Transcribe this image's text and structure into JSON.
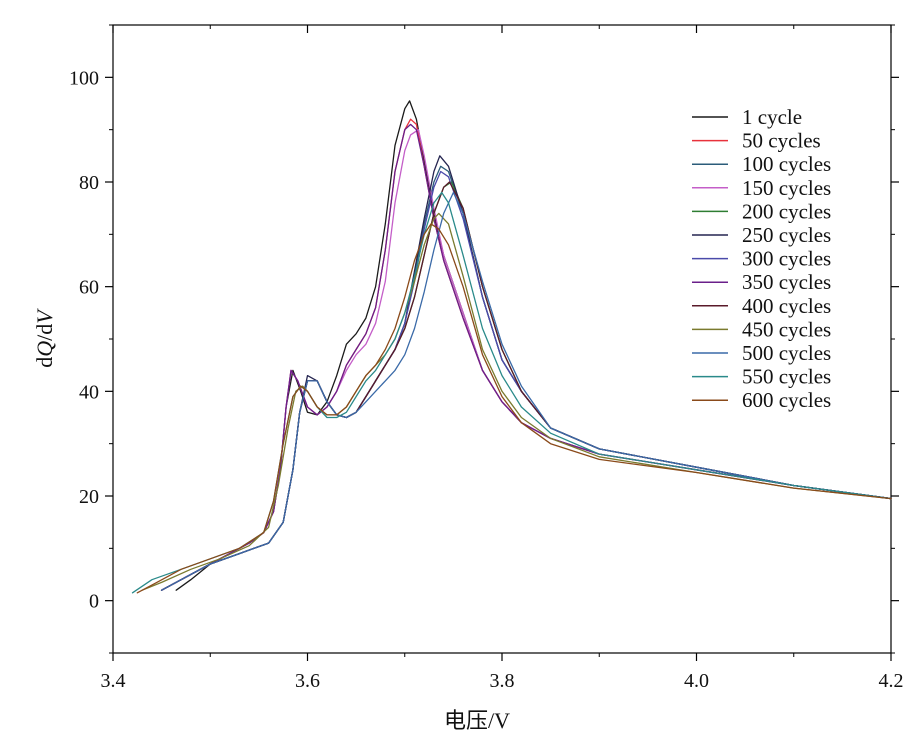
{
  "chart_data": {
    "type": "line",
    "title": "",
    "xlabel": "电压/V",
    "ylabel_parts": [
      "d",
      "Q",
      "/d",
      "V"
    ],
    "xlim": [
      3.4,
      4.2
    ],
    "ylim": [
      -10,
      110
    ],
    "x_ticks": [
      3.4,
      3.6,
      3.8,
      4.0,
      4.2
    ],
    "x_tick_labels": [
      "3.4",
      "3.6",
      "3.8",
      "4.0",
      "4.2"
    ],
    "y_ticks": [
      0,
      20,
      40,
      60,
      80,
      100
    ],
    "y_tick_labels": [
      "0",
      "20",
      "40",
      "60",
      "80",
      "100"
    ],
    "grid": false,
    "legend_position": "top-right",
    "series": [
      {
        "name": "1 cycle",
        "color": "#1a1a1a",
        "x": [
          3.465,
          3.48,
          3.5,
          3.52,
          3.54,
          3.555,
          3.565,
          3.572,
          3.578,
          3.585,
          3.593,
          3.6,
          3.61,
          3.62,
          3.63,
          3.64,
          3.65,
          3.66,
          3.67,
          3.68,
          3.69,
          3.7,
          3.705,
          3.712,
          3.72,
          3.73,
          3.74,
          3.76,
          3.78,
          3.8,
          3.82,
          3.85,
          3.9,
          4.0,
          4.1,
          4.2
        ],
        "y": [
          2,
          4,
          7,
          9,
          11,
          13,
          17,
          25,
          37,
          44,
          40,
          36,
          35.5,
          38,
          43,
          49,
          51,
          54,
          60,
          72,
          87,
          94,
          95.5,
          92,
          84,
          74,
          66,
          55,
          44,
          38,
          34,
          31,
          28,
          25,
          22,
          19.5
        ]
      },
      {
        "name": "50 cycles",
        "color": "#e8323c",
        "x": [
          3.45,
          3.47,
          3.5,
          3.52,
          3.54,
          3.555,
          3.565,
          3.572,
          3.578,
          3.583,
          3.59,
          3.6,
          3.61,
          3.62,
          3.63,
          3.64,
          3.65,
          3.66,
          3.67,
          3.68,
          3.69,
          3.7,
          3.706,
          3.712,
          3.72,
          3.73,
          3.74,
          3.76,
          3.78,
          3.8,
          3.82,
          3.85,
          3.9,
          4.0,
          4.1,
          4.2
        ],
        "y": [
          2,
          4,
          7,
          9,
          11,
          13,
          17,
          25,
          37,
          44,
          42,
          37,
          35.5,
          37,
          40,
          45,
          48,
          51,
          56,
          67,
          82,
          90,
          92,
          91,
          83,
          73,
          65,
          54,
          44,
          38,
          34,
          31,
          28,
          25,
          22,
          19.5
        ]
      },
      {
        "name": "100 cycles",
        "color": "#2b5c7a",
        "x": [
          3.45,
          3.47,
          3.5,
          3.53,
          3.56,
          3.575,
          3.585,
          3.592,
          3.6,
          3.61,
          3.62,
          3.63,
          3.64,
          3.65,
          3.66,
          3.67,
          3.68,
          3.69,
          3.7,
          3.71,
          3.72,
          3.73,
          3.737,
          3.745,
          3.76,
          3.78,
          3.8,
          3.82,
          3.85,
          3.9,
          4.0,
          4.1,
          4.2
        ],
        "y": [
          2,
          4,
          7,
          9,
          11,
          15,
          25,
          36,
          42,
          42,
          38,
          35.5,
          35,
          36,
          39,
          42,
          45,
          48,
          53,
          62,
          72,
          80,
          83,
          82,
          74,
          58,
          46,
          40,
          33,
          29,
          25.5,
          22,
          19.5
        ]
      },
      {
        "name": "150 cycles",
        "color": "#c45ec8",
        "x": [
          3.45,
          3.47,
          3.5,
          3.52,
          3.54,
          3.555,
          3.565,
          3.572,
          3.578,
          3.583,
          3.59,
          3.6,
          3.61,
          3.62,
          3.63,
          3.64,
          3.65,
          3.66,
          3.67,
          3.68,
          3.69,
          3.7,
          3.706,
          3.714,
          3.72,
          3.73,
          3.74,
          3.76,
          3.78,
          3.8,
          3.82,
          3.85,
          3.9,
          4.0,
          4.1,
          4.2
        ],
        "y": [
          2,
          4,
          7,
          9,
          11,
          13,
          17,
          25,
          37,
          44,
          42,
          37,
          35.5,
          37,
          40,
          44,
          47,
          49,
          53,
          61,
          76,
          86,
          89,
          90,
          85,
          75,
          66,
          55,
          44,
          38,
          34,
          31,
          28,
          25,
          22,
          19.5
        ]
      },
      {
        "name": "200 cycles",
        "color": "#2e7d32",
        "x": [
          3.45,
          3.47,
          3.5,
          3.53,
          3.56,
          3.575,
          3.585,
          3.592,
          3.6,
          3.61,
          3.62,
          3.63,
          3.64,
          3.65,
          3.66,
          3.67,
          3.68,
          3.69,
          3.7,
          3.71,
          3.72,
          3.73,
          3.74,
          3.748,
          3.76,
          3.78,
          3.8,
          3.82,
          3.85,
          3.9,
          4.0,
          4.1,
          4.2
        ],
        "y": [
          2,
          4,
          7,
          9,
          11,
          15,
          25,
          36,
          42,
          42,
          38,
          35.5,
          35,
          36,
          39,
          42,
          45,
          48,
          52,
          58,
          66,
          74,
          79,
          80,
          75,
          60,
          48,
          40,
          33,
          29,
          25.5,
          22,
          19.5
        ]
      },
      {
        "name": "250 cycles",
        "color": "#252550",
        "x": [
          3.45,
          3.47,
          3.5,
          3.53,
          3.56,
          3.575,
          3.585,
          3.592,
          3.6,
          3.61,
          3.62,
          3.63,
          3.64,
          3.65,
          3.66,
          3.67,
          3.68,
          3.69,
          3.7,
          3.71,
          3.72,
          3.73,
          3.736,
          3.745,
          3.76,
          3.78,
          3.8,
          3.82,
          3.85,
          3.9,
          4.0,
          4.1,
          4.2
        ],
        "y": [
          2,
          4,
          7,
          9,
          11,
          15,
          25,
          36,
          43,
          42,
          38,
          35.5,
          35,
          36,
          39,
          42,
          45,
          48,
          53,
          63,
          73,
          82,
          85,
          83,
          74,
          58,
          46,
          40,
          33,
          29,
          25.5,
          22,
          19.5
        ]
      },
      {
        "name": "300 cycles",
        "color": "#4a4aaa",
        "x": [
          3.45,
          3.47,
          3.5,
          3.53,
          3.56,
          3.575,
          3.585,
          3.592,
          3.6,
          3.61,
          3.62,
          3.63,
          3.64,
          3.65,
          3.66,
          3.67,
          3.68,
          3.69,
          3.7,
          3.71,
          3.72,
          3.73,
          3.737,
          3.745,
          3.76,
          3.78,
          3.8,
          3.82,
          3.85,
          3.9,
          4.0,
          4.1,
          4.2
        ],
        "y": [
          2,
          4,
          7,
          9,
          11,
          15,
          25,
          36,
          42,
          42,
          38,
          35.5,
          35,
          36,
          39,
          42,
          45,
          48,
          53,
          61,
          71,
          79,
          82,
          81,
          73,
          58,
          46,
          40,
          33,
          29,
          25.5,
          22,
          19.5
        ]
      },
      {
        "name": "350 cycles",
        "color": "#6a1f8a",
        "x": [
          3.45,
          3.47,
          3.5,
          3.52,
          3.54,
          3.555,
          3.565,
          3.572,
          3.578,
          3.583,
          3.59,
          3.6,
          3.61,
          3.62,
          3.63,
          3.64,
          3.65,
          3.66,
          3.67,
          3.68,
          3.69,
          3.7,
          3.706,
          3.712,
          3.72,
          3.73,
          3.74,
          3.76,
          3.78,
          3.8,
          3.82,
          3.85,
          3.9,
          4.0,
          4.1,
          4.2
        ],
        "y": [
          2,
          4,
          7,
          9,
          11,
          13,
          17,
          25,
          37,
          44,
          42,
          37,
          35.5,
          37,
          40,
          45,
          48,
          51,
          56,
          67,
          82,
          90,
          91,
          90,
          83,
          73,
          65,
          54,
          44,
          38,
          34,
          31,
          28,
          25,
          22,
          19.5
        ]
      },
      {
        "name": "400 cycles",
        "color": "#5a1a2a",
        "x": [
          3.45,
          3.47,
          3.5,
          3.53,
          3.56,
          3.575,
          3.585,
          3.592,
          3.6,
          3.61,
          3.62,
          3.63,
          3.64,
          3.65,
          3.66,
          3.67,
          3.68,
          3.69,
          3.7,
          3.71,
          3.72,
          3.73,
          3.74,
          3.746,
          3.76,
          3.78,
          3.8,
          3.82,
          3.85,
          3.9,
          4.0,
          4.1,
          4.2
        ],
        "y": [
          2,
          4,
          7,
          9,
          11,
          15,
          25,
          36,
          42,
          42,
          38,
          35.5,
          35,
          36,
          39,
          42,
          45,
          48,
          52,
          58,
          66,
          74,
          79,
          80,
          75,
          60,
          48,
          40,
          33,
          29,
          25.5,
          22,
          19.5
        ]
      },
      {
        "name": "450 cycles",
        "color": "#7a7a2e",
        "x": [
          3.43,
          3.45,
          3.48,
          3.51,
          3.54,
          3.56,
          3.57,
          3.58,
          3.588,
          3.595,
          3.6,
          3.61,
          3.62,
          3.63,
          3.64,
          3.65,
          3.66,
          3.67,
          3.68,
          3.69,
          3.7,
          3.71,
          3.72,
          3.73,
          3.735,
          3.745,
          3.76,
          3.78,
          3.8,
          3.82,
          3.85,
          3.9,
          4.0,
          4.1,
          4.2
        ],
        "y": [
          2,
          3.5,
          6,
          8,
          10.5,
          14,
          22,
          33,
          40,
          41,
          40,
          37,
          35.5,
          35.5,
          37,
          40,
          43,
          45,
          47,
          50,
          55,
          61,
          68,
          73,
          74,
          72,
          62,
          48,
          40,
          35,
          31,
          27.5,
          24.5,
          21.5,
          19.5
        ]
      },
      {
        "name": "500 cycles",
        "color": "#3a6aa8",
        "x": [
          3.45,
          3.47,
          3.5,
          3.53,
          3.56,
          3.575,
          3.585,
          3.592,
          3.6,
          3.61,
          3.62,
          3.63,
          3.64,
          3.65,
          3.66,
          3.67,
          3.68,
          3.69,
          3.7,
          3.71,
          3.72,
          3.73,
          3.74,
          3.75,
          3.76,
          3.78,
          3.8,
          3.82,
          3.85,
          3.9,
          4.0,
          4.1,
          4.2
        ],
        "y": [
          2,
          4,
          7,
          9,
          11,
          15,
          25,
          36,
          42,
          42,
          38,
          35.5,
          35,
          36,
          38,
          40,
          42,
          44,
          47,
          52,
          59,
          67,
          74,
          78,
          74,
          61,
          49,
          41,
          33,
          29,
          25.5,
          22,
          19.5
        ]
      },
      {
        "name": "550 cycles",
        "color": "#2a8a8a",
        "x": [
          3.42,
          3.44,
          3.47,
          3.5,
          3.53,
          3.555,
          3.565,
          3.575,
          3.585,
          3.593,
          3.6,
          3.61,
          3.62,
          3.63,
          3.64,
          3.65,
          3.66,
          3.67,
          3.68,
          3.69,
          3.7,
          3.71,
          3.72,
          3.73,
          3.738,
          3.745,
          3.76,
          3.78,
          3.8,
          3.82,
          3.85,
          3.9,
          4.0,
          4.1,
          4.2
        ],
        "y": [
          1.5,
          4,
          6,
          8,
          10,
          13,
          19,
          30,
          39,
          41,
          40,
          37,
          35,
          35,
          36,
          39,
          42,
          44,
          47,
          50,
          55,
          62,
          70,
          76,
          78,
          76,
          66,
          52,
          43,
          37,
          32,
          28,
          25,
          22,
          19.5
        ]
      },
      {
        "name": "600 cycles",
        "color": "#8a4a1a",
        "x": [
          3.425,
          3.445,
          3.47,
          3.5,
          3.53,
          3.555,
          3.565,
          3.575,
          3.585,
          3.593,
          3.6,
          3.61,
          3.62,
          3.63,
          3.64,
          3.65,
          3.66,
          3.67,
          3.68,
          3.69,
          3.7,
          3.71,
          3.72,
          3.727,
          3.735,
          3.745,
          3.76,
          3.78,
          3.8,
          3.82,
          3.85,
          3.9,
          4.0,
          4.1,
          4.2
        ],
        "y": [
          1.5,
          3.5,
          6,
          8,
          10,
          13,
          19,
          30,
          39,
          41,
          40,
          37,
          35.5,
          35.5,
          37,
          40,
          43,
          45,
          48,
          52,
          58,
          65,
          70,
          72,
          71,
          68,
          60,
          47,
          39,
          34,
          30,
          27,
          24.5,
          21.5,
          19.5
        ]
      }
    ]
  }
}
